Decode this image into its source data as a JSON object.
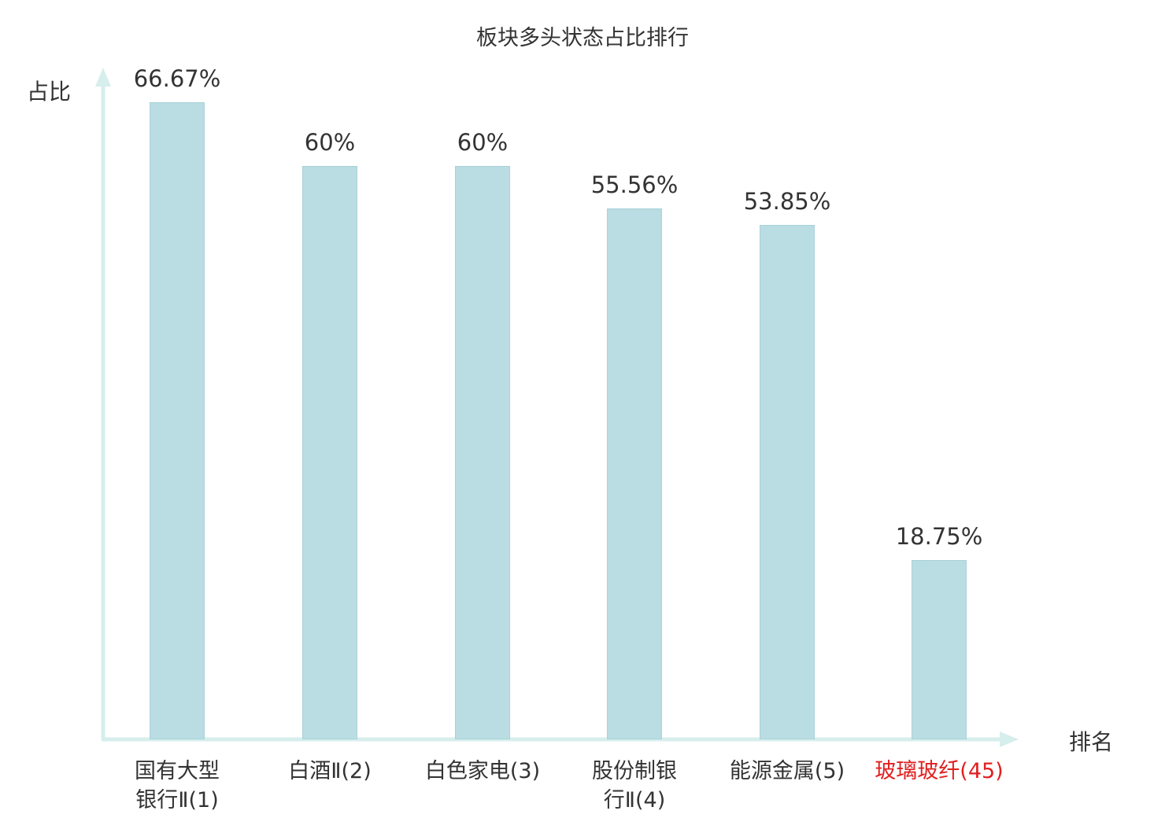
{
  "chart_data": {
    "type": "bar",
    "title": "板块多头状态占比排行",
    "xlabel": "排名",
    "ylabel": "占比",
    "categories": [
      "国有大型银行Ⅱ(1)",
      "白酒Ⅱ(2)",
      "白色家电(3)",
      "股份制银行Ⅱ(4)",
      "能源金属(5)",
      "玻璃玻纤(45)"
    ],
    "values": [
      66.67,
      60,
      60,
      55.56,
      53.85,
      18.75
    ],
    "value_labels": [
      "66.67%",
      "60%",
      "60%",
      "55.56%",
      "53.85%",
      "18.75%"
    ],
    "category_label_lines": [
      [
        "国有大型",
        "银行Ⅱ(1)"
      ],
      [
        "白酒Ⅱ(2)"
      ],
      [
        "白色家电(3)"
      ],
      [
        "股份制银",
        "行Ⅱ(4)"
      ],
      [
        "能源金属(5)"
      ],
      [
        "玻璃玻纤(45)"
      ]
    ],
    "highlight_index": 5,
    "grid": false,
    "legend": null,
    "ylim": [
      0,
      70
    ],
    "colors": {
      "bar_fill": "#b9dde2",
      "bar_border": "#a9d2d9",
      "axis": "#d6eeec",
      "text": "#333333",
      "highlight_text": "#e02020"
    }
  }
}
